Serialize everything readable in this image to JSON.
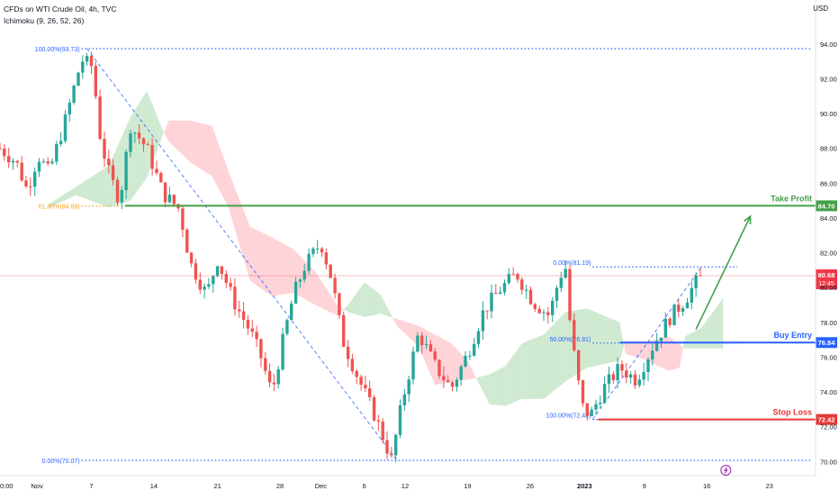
{
  "header": {
    "symbol_line": "CFDs on WTI Crude Oil, 4h, TVC",
    "indicator_line": "Ichimoku (9, 26, 52, 26)",
    "currency": "USD"
  },
  "chart_data": {
    "type": "candlestick",
    "ylim": [
      69.5,
      95.5
    ],
    "y_ticks": [
      "70.00",
      "72.00",
      "74.00",
      "76.00",
      "78.00",
      "80.00",
      "82.00",
      "84.00",
      "86.00",
      "88.00",
      "90.00",
      "92.00",
      "94.00"
    ],
    "x_ticks": [
      "0:00",
      "Nov",
      "7",
      "14",
      "21",
      "28",
      "Dec",
      "6",
      "12",
      "19",
      "26",
      "2023",
      "9",
      "16",
      "23"
    ],
    "colors": {
      "up": "#26a69a",
      "down": "#ef5350",
      "kumo_bull": "#c8e6c9",
      "kumo_bear": "#ffcdd2",
      "fib": "#2962ff",
      "fib_618": "#f7a21b",
      "take_profit": "#43a047",
      "buy_entry": "#2962ff",
      "stop_loss": "#e53935",
      "last_price": "#f23645"
    },
    "price_path": [
      {
        "t": 0,
        "p": 88.0
      },
      {
        "t": 3,
        "p": 87.2
      },
      {
        "t": 5,
        "p": 85.6
      },
      {
        "t": 7,
        "p": 87.6
      },
      {
        "t": 9,
        "p": 86.6
      },
      {
        "t": 12,
        "p": 89.6
      },
      {
        "t": 15,
        "p": 93.1
      },
      {
        "t": 17,
        "p": 92.7
      },
      {
        "t": 18.5,
        "p": 88.5
      },
      {
        "t": 20,
        "p": 86.6
      },
      {
        "t": 22,
        "p": 85.0
      },
      {
        "t": 24,
        "p": 89.3
      },
      {
        "t": 27,
        "p": 88.0
      },
      {
        "t": 30,
        "p": 85.4
      },
      {
        "t": 33,
        "p": 84.5
      },
      {
        "t": 35,
        "p": 81.4
      },
      {
        "t": 38,
        "p": 79.6
      },
      {
        "t": 40,
        "p": 81.6
      },
      {
        "t": 43,
        "p": 79.2
      },
      {
        "t": 46,
        "p": 77.5
      },
      {
        "t": 48,
        "p": 76.0
      },
      {
        "t": 50,
        "p": 73.9
      },
      {
        "t": 52,
        "p": 76.9
      },
      {
        "t": 54,
        "p": 79.6
      },
      {
        "t": 56,
        "p": 81.2
      },
      {
        "t": 59,
        "p": 82.6
      },
      {
        "t": 61,
        "p": 80.5
      },
      {
        "t": 63,
        "p": 77.0
      },
      {
        "t": 66,
        "p": 74.7
      },
      {
        "t": 69,
        "p": 72.6
      },
      {
        "t": 72,
        "p": 70.1
      },
      {
        "t": 74,
        "p": 73.5
      },
      {
        "t": 77,
        "p": 77.4
      },
      {
        "t": 80,
        "p": 75.5
      },
      {
        "t": 83,
        "p": 74.2
      },
      {
        "t": 86,
        "p": 76.2
      },
      {
        "t": 89,
        "p": 78.7
      },
      {
        "t": 92,
        "p": 79.9
      },
      {
        "t": 95,
        "p": 80.8
      },
      {
        "t": 98,
        "p": 79.2
      },
      {
        "t": 101,
        "p": 78.4
      },
      {
        "t": 103,
        "p": 80.7
      },
      {
        "t": 104,
        "p": 81.1
      },
      {
        "t": 105,
        "p": 77.4
      },
      {
        "t": 107,
        "p": 73.2
      },
      {
        "t": 108.5,
        "p": 72.6
      },
      {
        "t": 111,
        "p": 74.2
      },
      {
        "t": 114,
        "p": 75.4
      },
      {
        "t": 117,
        "p": 74.7
      },
      {
        "t": 120,
        "p": 76.6
      },
      {
        "t": 123,
        "p": 78.2
      },
      {
        "t": 126,
        "p": 79.3
      },
      {
        "t": 128,
        "p": 80.3
      },
      {
        "t": 129.5,
        "p": 80.7
      }
    ],
    "kumo": [
      {
        "t": 9,
        "a": 84.8,
        "b": 84.6
      },
      {
        "t": 14,
        "a": 85.8,
        "b": 85.3
      },
      {
        "t": 20,
        "a": 87.0,
        "b": 84.6
      },
      {
        "t": 24,
        "a": 89.8,
        "b": 85.0
      },
      {
        "t": 27,
        "a": 91.3,
        "b": 86.3
      },
      {
        "t": 30,
        "a": 89.0,
        "b": 88.8
      },
      {
        "t": 31,
        "a": 88.4,
        "b": 89.6
      },
      {
        "t": 35,
        "a": 87.2,
        "b": 89.6
      },
      {
        "t": 39,
        "a": 86.4,
        "b": 89.3
      },
      {
        "t": 42,
        "a": 84.6,
        "b": 86.7
      },
      {
        "t": 46,
        "a": 80.4,
        "b": 83.5
      },
      {
        "t": 50,
        "a": 79.5,
        "b": 82.9
      },
      {
        "t": 54,
        "a": 79.7,
        "b": 82.2
      },
      {
        "t": 58,
        "a": 79.0,
        "b": 80.9
      },
      {
        "t": 62,
        "a": 78.4,
        "b": 79.0
      },
      {
        "t": 64,
        "a": 79.0,
        "b": 78.6
      },
      {
        "t": 67,
        "a": 80.3,
        "b": 78.3
      },
      {
        "t": 70,
        "a": 79.6,
        "b": 78.5
      },
      {
        "t": 73,
        "a": 77.8,
        "b": 78.2
      },
      {
        "t": 77,
        "a": 76.6,
        "b": 77.8
      },
      {
        "t": 80,
        "a": 74.4,
        "b": 77.3
      },
      {
        "t": 83,
        "a": 74.6,
        "b": 76.8
      },
      {
        "t": 86,
        "a": 74.7,
        "b": 75.8
      },
      {
        "t": 90,
        "a": 75.0,
        "b": 73.3
      },
      {
        "t": 93,
        "a": 75.5,
        "b": 73.2
      },
      {
        "t": 96,
        "a": 76.8,
        "b": 73.6
      },
      {
        "t": 100,
        "a": 77.3,
        "b": 73.6
      },
      {
        "t": 104,
        "a": 78.6,
        "b": 74.6
      },
      {
        "t": 108,
        "a": 78.8,
        "b": 75.4
      },
      {
        "t": 111,
        "a": 78.4,
        "b": 75.6
      },
      {
        "t": 114,
        "a": 78.0,
        "b": 75.8
      },
      {
        "t": 115,
        "a": 76.2,
        "b": 76.9
      },
      {
        "t": 119,
        "a": 75.8,
        "b": 76.9
      },
      {
        "t": 123,
        "a": 75.2,
        "b": 77.2
      },
      {
        "t": 125,
        "a": 75.4,
        "b": 76.7
      },
      {
        "t": 126,
        "a": 77.2,
        "b": 76.5
      },
      {
        "t": 129,
        "a": 77.7,
        "b": 76.5
      },
      {
        "t": 133,
        "a": 79.4,
        "b": 76.5
      }
    ],
    "fib_down": {
      "from": {
        "t": 16,
        "p": 93.73
      },
      "to": {
        "t": 73,
        "p": 70.07
      },
      "labels": [
        {
          "text": "100.00%(93.73)",
          "p": 93.73
        },
        {
          "text": "61.80%(84.69)",
          "p": 84.69
        },
        {
          "text": "0.00%(70.07)",
          "p": 70.07
        }
      ]
    },
    "fib_up": {
      "from": {
        "t": 109,
        "p": 72.42
      },
      "to": {
        "t": 129,
        "p": 81.19
      },
      "labels": [
        {
          "text": "0.00%(81.19)",
          "p": 81.19
        },
        {
          "text": "50.00%(76.81)",
          "p": 76.81
        },
        {
          "text": "100.00%(72.42)",
          "p": 72.42
        }
      ]
    },
    "levels": [
      {
        "name": "Take Profit",
        "value": 84.7,
        "tag": "84.70",
        "role": "take_profit"
      },
      {
        "name": "Buy Entry",
        "value": 76.84,
        "tag": "76.84",
        "role": "buy_entry"
      },
      {
        "name": "Stop Loss",
        "value": 72.42,
        "tag": "72.42",
        "role": "stop_loss"
      }
    ],
    "last_price": {
      "value": 80.68,
      "tag": "80.68",
      "countdown": "12:45"
    },
    "arrow": {
      "from": {
        "t": 128,
        "p": 77.6
      },
      "to": {
        "t": 138,
        "p": 84.1
      }
    }
  }
}
